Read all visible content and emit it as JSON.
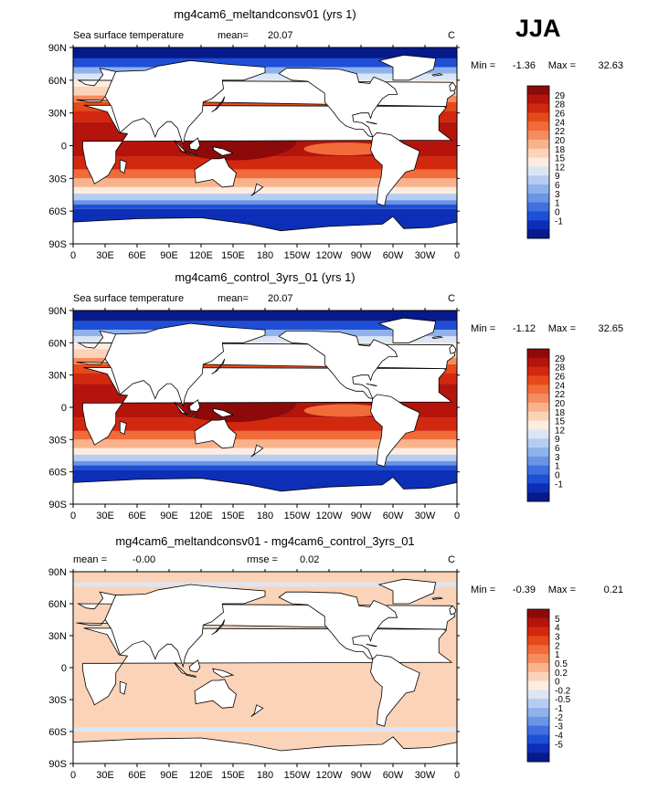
{
  "season": "JJA",
  "chart_data": [
    {
      "type": "heatmap",
      "title": "mg4cam6_meltandconsv01 (yrs 1)",
      "field_label": "Sea surface temperature",
      "mean_label": "mean=",
      "mean_value": "20.07",
      "units": "C",
      "min_label": "Min =",
      "min_value": "-1.36",
      "max_label": "Max =",
      "max_value": "32.63",
      "x_ticks": [
        "0",
        "30E",
        "60E",
        "90E",
        "120E",
        "150E",
        "180",
        "150W",
        "120W",
        "90W",
        "60W",
        "30W",
        "0"
      ],
      "y_ticks": [
        "90N",
        "60N",
        "30N",
        "0",
        "30S",
        "60S",
        "90S"
      ],
      "xlim": [
        0,
        360
      ],
      "ylim": [
        -90,
        90
      ],
      "colorbar_levels": [
        "29",
        "28",
        "26",
        "24",
        "22",
        "20",
        "18",
        "15",
        "12",
        "9",
        "6",
        "3",
        "1",
        "0",
        "-1"
      ],
      "colorbar_colors": [
        "#8c0a0a",
        "#b4140c",
        "#d2280e",
        "#e64a19",
        "#f26b3a",
        "#f58c5e",
        "#f9b38c",
        "#fbd3b8",
        "#fdecdf",
        "#dbe6f5",
        "#b5cdf0",
        "#8fb2ec",
        "#6a94e6",
        "#3f6fe0",
        "#1f4fd6",
        "#0d2fb8",
        "#061a8c"
      ]
    },
    {
      "type": "heatmap",
      "title": "mg4cam6_control_3yrs_01 (yrs 1)",
      "field_label": "Sea surface temperature",
      "mean_label": "mean=",
      "mean_value": "20.07",
      "units": "C",
      "min_label": "Min =",
      "min_value": "-1.12",
      "max_label": "Max =",
      "max_value": "32.65",
      "x_ticks": [
        "0",
        "30E",
        "60E",
        "90E",
        "120E",
        "150E",
        "180",
        "150W",
        "120W",
        "90W",
        "60W",
        "30W",
        "0"
      ],
      "y_ticks": [
        "90N",
        "60N",
        "30N",
        "0",
        "30S",
        "60S",
        "90S"
      ],
      "xlim": [
        0,
        360
      ],
      "ylim": [
        -90,
        90
      ],
      "colorbar_levels": [
        "29",
        "28",
        "26",
        "24",
        "22",
        "20",
        "18",
        "15",
        "12",
        "9",
        "6",
        "3",
        "1",
        "0",
        "-1"
      ],
      "colorbar_colors": [
        "#8c0a0a",
        "#b4140c",
        "#d2280e",
        "#e64a19",
        "#f26b3a",
        "#f58c5e",
        "#f9b38c",
        "#fbd3b8",
        "#fdecdf",
        "#dbe6f5",
        "#b5cdf0",
        "#8fb2ec",
        "#6a94e6",
        "#3f6fe0",
        "#1f4fd6",
        "#0d2fb8",
        "#061a8c"
      ]
    },
    {
      "type": "heatmap",
      "title": "mg4cam6_meltandconsv01 - mg4cam6_control_3yrs_01",
      "mean_label": "mean =",
      "mean_value": "-0.00",
      "rmse_label": "rmse =",
      "rmse_value": "0.02",
      "units": "C",
      "min_label": "Min =",
      "min_value": "-0.39",
      "max_label": "Max =",
      "max_value": "0.21",
      "x_ticks": [
        "0",
        "30E",
        "60E",
        "90E",
        "120E",
        "150E",
        "180",
        "150W",
        "120W",
        "90W",
        "60W",
        "30W",
        "0"
      ],
      "y_ticks": [
        "90N",
        "60N",
        "30N",
        "0",
        "30S",
        "60S",
        "90S"
      ],
      "xlim": [
        0,
        360
      ],
      "ylim": [
        -90,
        90
      ],
      "colorbar_levels": [
        "5",
        "4",
        "3",
        "2",
        "1",
        "0.5",
        "0.2",
        "0",
        "-0.2",
        "-0.5",
        "-1",
        "-2",
        "-3",
        "-4",
        "-5"
      ],
      "colorbar_colors": [
        "#8c0a0a",
        "#b4140c",
        "#d2280e",
        "#e64a19",
        "#f26b3a",
        "#f58c5e",
        "#f9b38c",
        "#fbd3b8",
        "#fdecdf",
        "#dbe6f5",
        "#b5cdf0",
        "#8fb2ec",
        "#6a94e6",
        "#3f6fe0",
        "#1f4fd6",
        "#0d2fb8",
        "#061a8c"
      ]
    }
  ]
}
